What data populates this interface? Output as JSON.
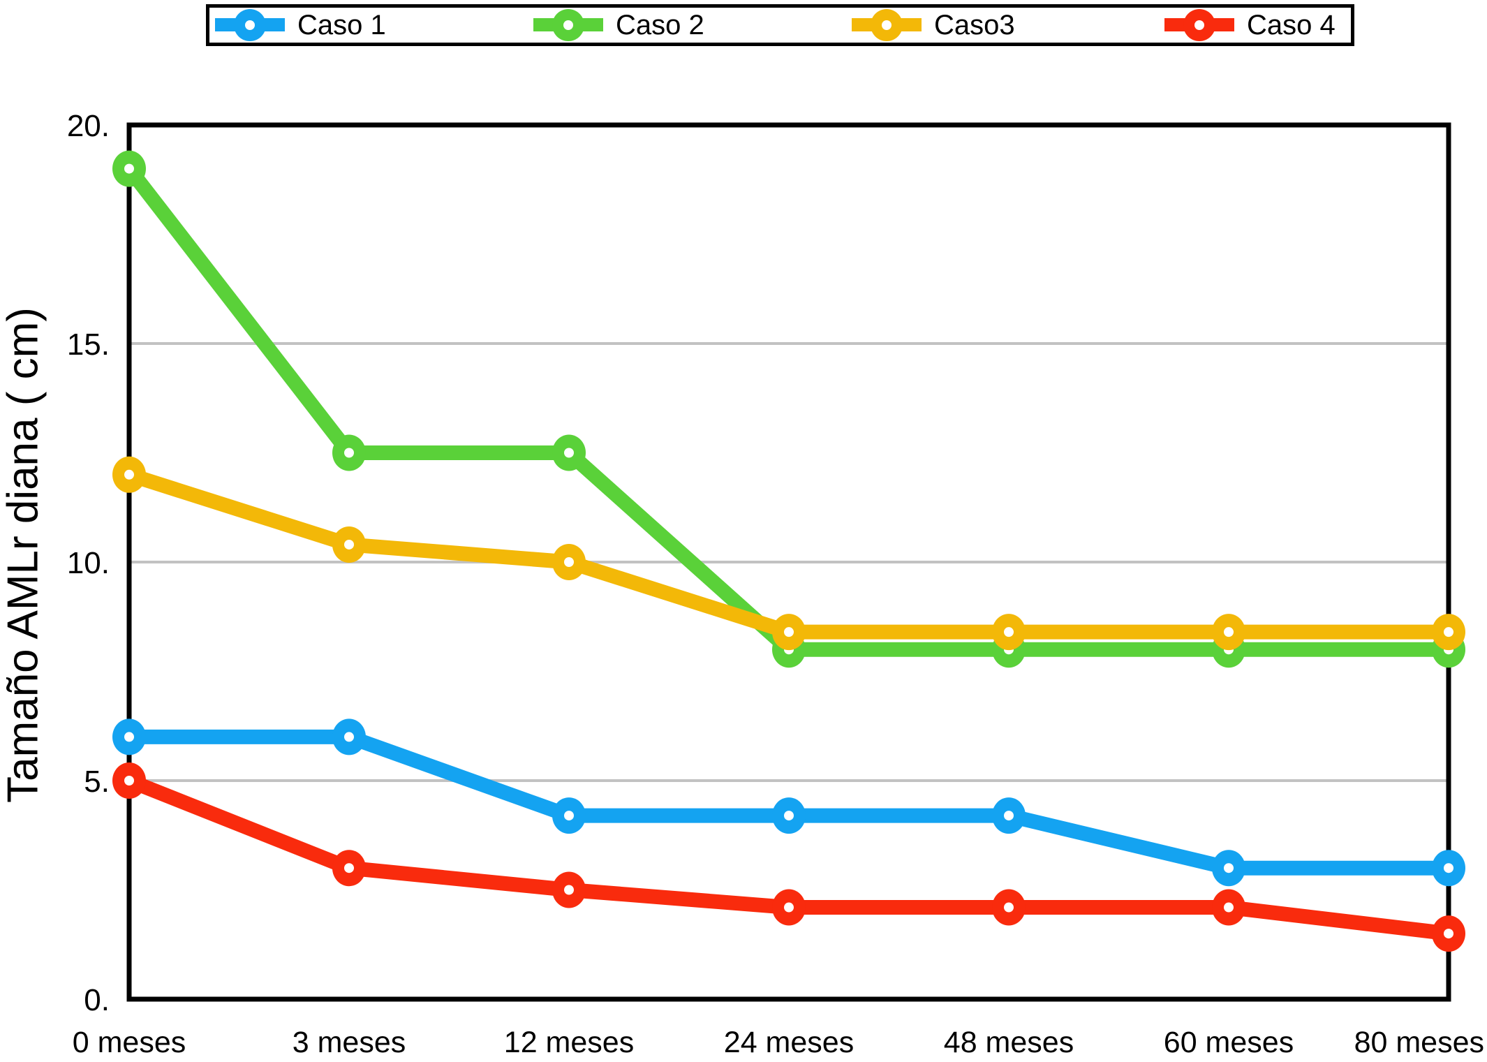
{
  "chart_data": {
    "type": "line",
    "ylabel": "Tamaño AMLr diana ( cm)",
    "categories": [
      "0 meses",
      "3 meses",
      "12 meses",
      "24 meses",
      "48 meses",
      "60 meses",
      "80 meses"
    ],
    "series": [
      {
        "name": "Caso 1",
        "color": "#14A3F1",
        "values": [
          6.0,
          6.0,
          4.2,
          4.2,
          4.2,
          3.0,
          3.0
        ]
      },
      {
        "name": "Caso 2",
        "color": "#5AD139",
        "values": [
          19.0,
          12.5,
          12.5,
          8.0,
          8.0,
          8.0,
          8.0
        ]
      },
      {
        "name": "Caso3",
        "color": "#F3B808",
        "values": [
          12.0,
          10.4,
          10.0,
          8.4,
          8.4,
          8.4,
          8.4
        ]
      },
      {
        "name": "Caso 4",
        "color": "#F92B0D",
        "values": [
          5.0,
          3.0,
          2.5,
          2.1,
          2.1,
          2.1,
          1.5
        ]
      }
    ],
    "ylim": [
      0,
      20
    ],
    "yticks": [
      0,
      5,
      10,
      15,
      20
    ],
    "ytick_labels": [
      "0.",
      "5.",
      "10.",
      "15.",
      "20."
    ],
    "grid": "horizontal",
    "grid_color": "#C2C2C2",
    "axis_color": "#000000",
    "legend_position": "top",
    "marker": "filled-circle-white-center"
  }
}
